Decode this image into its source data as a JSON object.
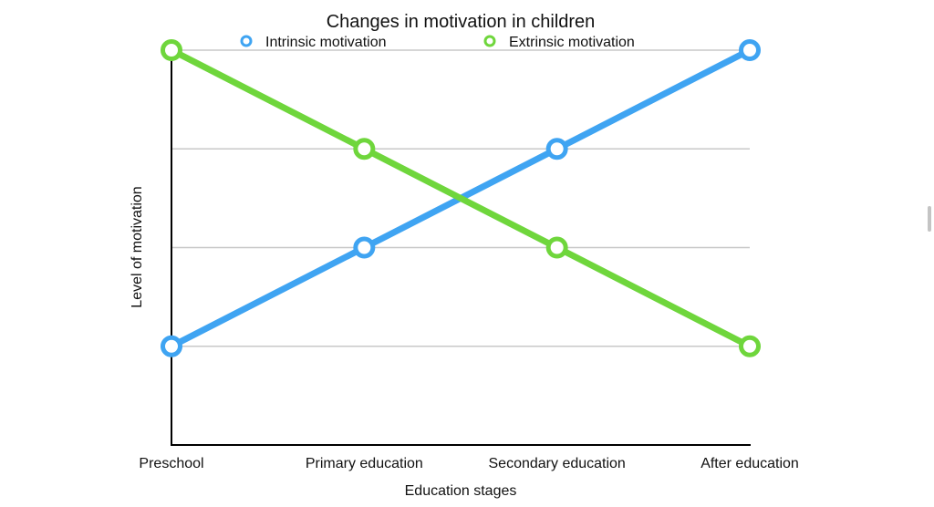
{
  "chart_data": {
    "type": "line",
    "title": "Changes in motivation in children",
    "xlabel": "Education stages",
    "ylabel": "Level of motivation",
    "categories": [
      "Preschool",
      "Primary education",
      "Secondary education",
      "After education"
    ],
    "ylim": [
      0,
      4
    ],
    "grid": true,
    "legend_position": "top",
    "series": [
      {
        "name": "Intrinsic motivation",
        "values": [
          1,
          2,
          3,
          4
        ],
        "color": "#3fa4f2"
      },
      {
        "name": "Extrinsic motivation",
        "values": [
          4,
          3,
          2,
          1
        ],
        "color": "#6fd63c"
      }
    ]
  }
}
